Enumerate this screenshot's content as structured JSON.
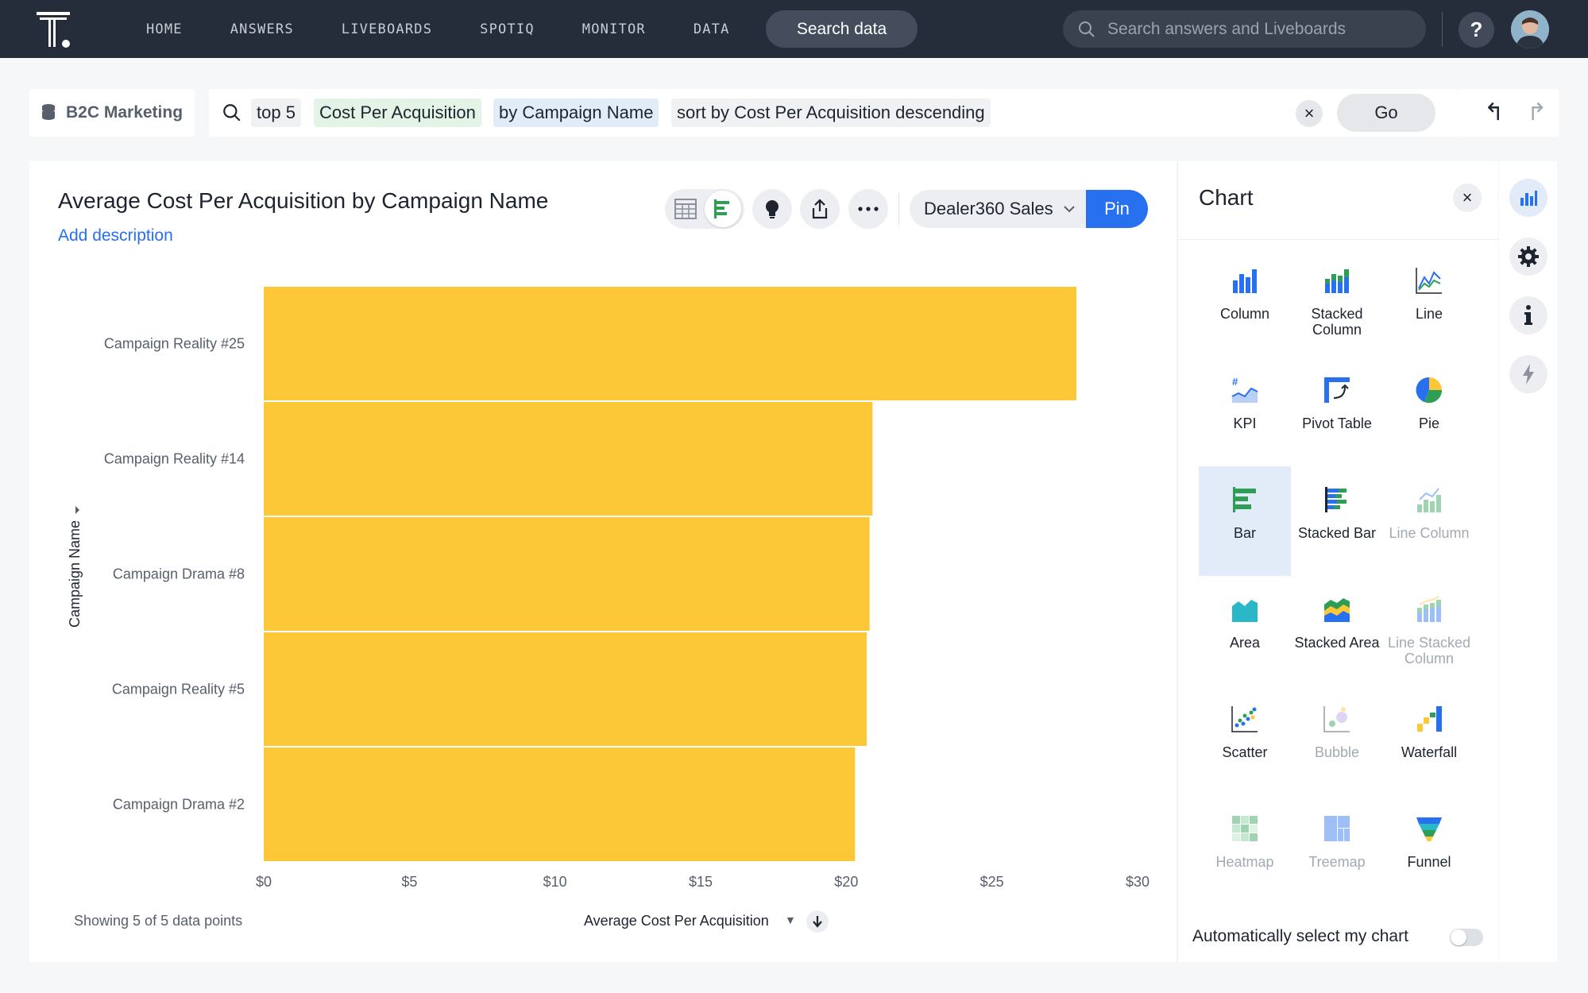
{
  "nav": {
    "items": [
      "HOME",
      "ANSWERS",
      "LIVEBOARDS",
      "SPOTIQ",
      "MONITOR",
      "DATA"
    ],
    "search_data_label": "Search data",
    "global_search_placeholder": "Search answers and Liveboards",
    "help_label": "?"
  },
  "search": {
    "datasource": "B2C Marketing",
    "tokens": [
      {
        "text": "top 5",
        "kind": "keyword"
      },
      {
        "text": "Cost Per Acquisition",
        "kind": "measure"
      },
      {
        "text": "by Campaign Name",
        "kind": "attribute"
      },
      {
        "text": "sort by Cost Per Acquisition descending",
        "kind": "keyword"
      }
    ],
    "go_label": "Go",
    "clear_label": "×"
  },
  "answer": {
    "title": "Average Cost Per Acquisition by Campaign Name",
    "add_description": "Add description",
    "liveboard": "Dealer360 Sales",
    "pin_label": "Pin",
    "footer_count": "Showing 5 of 5 data points",
    "sort_label": "Average Cost Per Acquisition"
  },
  "chart_data": {
    "type": "bar",
    "orientation": "horizontal",
    "categories": [
      "Campaign Reality #25",
      "Campaign Reality #14",
      "Campaign Drama #8",
      "Campaign Reality #5",
      "Campaign Drama #2"
    ],
    "values": [
      27.9,
      20.9,
      20.8,
      20.7,
      20.3
    ],
    "xlabel": "Average Cost Per Acquisition",
    "ylabel": "Campaign Name",
    "xlim": [
      0,
      30
    ],
    "xticks": [
      "$0",
      "$5",
      "$10",
      "$15",
      "$20",
      "$25",
      "$30"
    ],
    "bar_color": "#fcc838",
    "grid": false
  },
  "chart_panel": {
    "title": "Chart",
    "close_label": "×",
    "types": [
      {
        "label": "Column",
        "icon": "column-chart-icon",
        "enabled": true,
        "selected": false
      },
      {
        "label": "Stacked Column",
        "icon": "stacked-column-chart-icon",
        "enabled": true,
        "selected": false
      },
      {
        "label": "Line",
        "icon": "line-chart-icon",
        "enabled": true,
        "selected": false
      },
      {
        "label": "KPI",
        "icon": "kpi-chart-icon",
        "enabled": true,
        "selected": false
      },
      {
        "label": "Pivot Table",
        "icon": "pivot-table-icon",
        "enabled": true,
        "selected": false
      },
      {
        "label": "Pie",
        "icon": "pie-chart-icon",
        "enabled": true,
        "selected": false
      },
      {
        "label": "Bar",
        "icon": "bar-chart-icon",
        "enabled": true,
        "selected": true
      },
      {
        "label": "Stacked Bar",
        "icon": "stacked-bar-chart-icon",
        "enabled": true,
        "selected": false
      },
      {
        "label": "Line Column",
        "icon": "line-column-chart-icon",
        "enabled": false,
        "selected": false
      },
      {
        "label": "Area",
        "icon": "area-chart-icon",
        "enabled": true,
        "selected": false
      },
      {
        "label": "Stacked Area",
        "icon": "stacked-area-chart-icon",
        "enabled": true,
        "selected": false
      },
      {
        "label": "Line Stacked Column",
        "icon": "line-stacked-column-chart-icon",
        "enabled": false,
        "selected": false
      },
      {
        "label": "Scatter",
        "icon": "scatter-chart-icon",
        "enabled": true,
        "selected": false
      },
      {
        "label": "Bubble",
        "icon": "bubble-chart-icon",
        "enabled": false,
        "selected": false
      },
      {
        "label": "Waterfall",
        "icon": "waterfall-chart-icon",
        "enabled": true,
        "selected": false
      },
      {
        "label": "Heatmap",
        "icon": "heatmap-chart-icon",
        "enabled": false,
        "selected": false
      },
      {
        "label": "Treemap",
        "icon": "treemap-chart-icon",
        "enabled": false,
        "selected": false
      },
      {
        "label": "Funnel",
        "icon": "funnel-chart-icon",
        "enabled": true,
        "selected": false
      }
    ],
    "auto_select_label": "Automatically select my chart",
    "auto_select_on": false
  },
  "colors": {
    "nav_bg": "#262d3a",
    "accent": "#2770ef",
    "measure_token": "#e3f3e5",
    "attribute_token": "#e2ebf8"
  }
}
